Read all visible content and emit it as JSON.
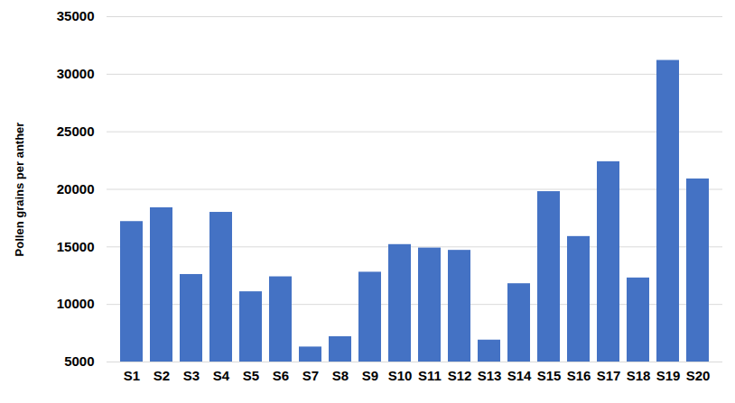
{
  "chart_data": {
    "type": "bar",
    "y_label": "Pollen grains per anther",
    "categories": [
      "S1",
      "S2",
      "S3",
      "S4",
      "S5",
      "S6",
      "S7",
      "S8",
      "S9",
      "S10",
      "S11",
      "S12",
      "S13",
      "S14",
      "S15",
      "S16",
      "S17",
      "S18",
      "S19",
      "S20"
    ],
    "values": [
      17200,
      18400,
      12600,
      18000,
      11100,
      12400,
      6300,
      7200,
      12800,
      15200,
      14900,
      14700,
      6900,
      11800,
      19800,
      15900,
      22400,
      12300,
      31200,
      20900
    ],
    "color": "#4472c4",
    "ylim": [
      5000,
      35000
    ],
    "yticks": [
      5000,
      10000,
      15000,
      20000,
      25000,
      30000,
      35000
    ],
    "grid": true
  }
}
